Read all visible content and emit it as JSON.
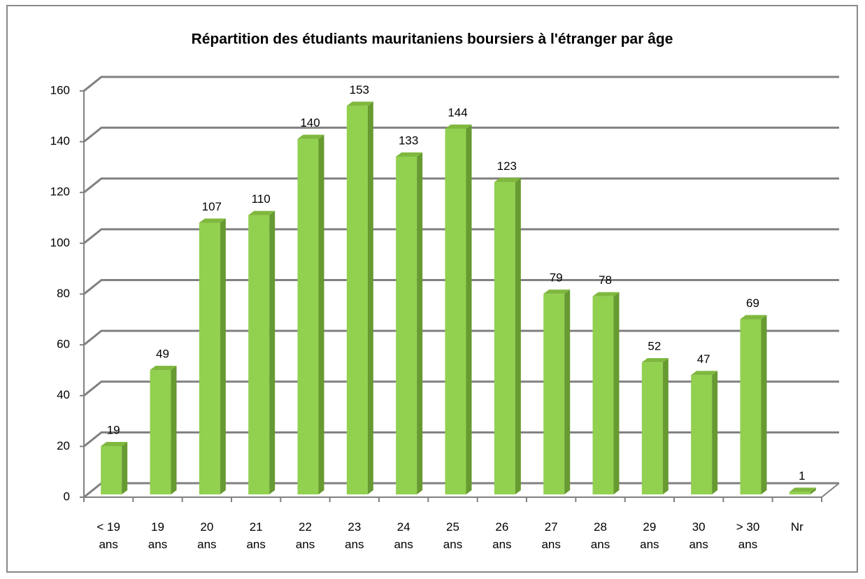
{
  "chart_data": {
    "type": "bar3d",
    "title": "Répartition des étudiants mauritaniens boursiers à l'étranger par âge",
    "categories": [
      "< 19 ans",
      "19 ans",
      "20 ans",
      "21 ans",
      "22 ans",
      "23 ans",
      "24 ans",
      "25 ans",
      "26 ans",
      "27 ans",
      "28 ans",
      "29 ans",
      "30 ans",
      "> 30 ans",
      "Nr"
    ],
    "values": [
      19,
      49,
      107,
      110,
      140,
      153,
      133,
      144,
      123,
      79,
      78,
      52,
      47,
      69,
      1
    ],
    "color": "#92d050",
    "ylim": [
      0,
      160
    ],
    "yticks": [
      0,
      20,
      40,
      60,
      80,
      100,
      120,
      140,
      160
    ],
    "grid": true
  }
}
